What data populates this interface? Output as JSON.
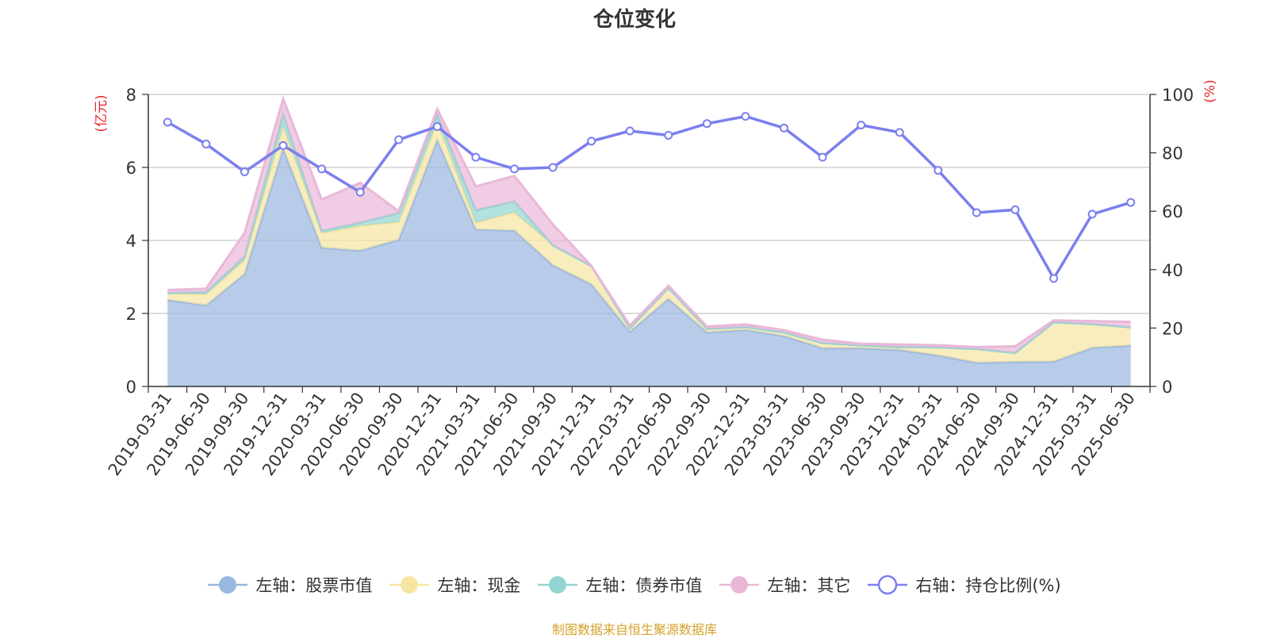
{
  "chart_data": {
    "type": "area",
    "title": "仓位变化",
    "left_unit": "(亿元)",
    "right_unit": "(%)",
    "left_ylim": [
      0,
      8
    ],
    "left_yticks": [
      0,
      2,
      4,
      6,
      8
    ],
    "right_ylim": [
      0,
      100
    ],
    "right_yticks": [
      0,
      20,
      40,
      60,
      80,
      100
    ],
    "grid": true,
    "legend_position": "bottom",
    "categories": [
      "2019-03-31",
      "2019-06-30",
      "2019-09-30",
      "2019-12-31",
      "2020-03-31",
      "2020-06-30",
      "2020-09-30",
      "2020-12-31",
      "2021-03-31",
      "2021-06-30",
      "2021-09-30",
      "2021-12-31",
      "2022-03-31",
      "2022-06-30",
      "2022-09-30",
      "2022-12-31",
      "2023-03-31",
      "2023-06-30",
      "2023-09-30",
      "2023-12-31",
      "2024-03-31",
      "2024-06-30",
      "2024-09-30",
      "2024-12-31",
      "2025-03-31",
      "2025-06-30"
    ],
    "series": [
      {
        "name": "左轴：股票市值",
        "axis": "left",
        "color": "#9ab7e0",
        "values": [
          2.37,
          2.22,
          3.08,
          6.51,
          3.8,
          3.72,
          4.02,
          6.75,
          4.3,
          4.27,
          3.32,
          2.8,
          1.5,
          2.4,
          1.48,
          1.55,
          1.38,
          1.05,
          1.05,
          1.0,
          0.85,
          0.65,
          0.67,
          0.68,
          1.06,
          1.12
        ]
      },
      {
        "name": "左轴：现金",
        "axis": "left",
        "color": "#f7e6a2",
        "values": [
          0.18,
          0.3,
          0.38,
          0.6,
          0.4,
          0.68,
          0.48,
          0.48,
          0.18,
          0.5,
          0.55,
          0.5,
          0.1,
          0.3,
          0.1,
          0.08,
          0.1,
          0.14,
          0.08,
          0.08,
          0.22,
          0.38,
          0.25,
          1.08,
          0.65,
          0.5
        ]
      },
      {
        "name": "左轴：债券市值",
        "axis": "left",
        "color": "#93d4d3",
        "values": [
          0.01,
          0.06,
          0.1,
          0.35,
          0.06,
          0.09,
          0.25,
          0.22,
          0.35,
          0.3,
          0.0,
          0.0,
          0.0,
          0.0,
          0.0,
          0.0,
          0.0,
          0.0,
          0.0,
          0.0,
          0.0,
          0.0,
          0.0,
          0.0,
          0.0,
          0.0
        ]
      },
      {
        "name": "左轴：其它",
        "axis": "left",
        "color": "#e9b8d8",
        "values": [
          0.08,
          0.1,
          0.65,
          0.42,
          0.86,
          1.09,
          0.05,
          0.15,
          0.65,
          0.7,
          0.57,
          0.0,
          0.07,
          0.06,
          0.06,
          0.07,
          0.06,
          0.09,
          0.04,
          0.07,
          0.06,
          0.05,
          0.18,
          0.05,
          0.08,
          0.15
        ]
      },
      {
        "name": "右轴：持仓比例(%)",
        "axis": "right",
        "color": "#7b7fef",
        "values": [
          90.5,
          83.0,
          73.5,
          82.5,
          74.5,
          66.5,
          84.5,
          89.0,
          78.5,
          74.5,
          75.0,
          84.0,
          87.5,
          86.0,
          90.0,
          92.5,
          88.5,
          78.5,
          89.5,
          87.0,
          74.0,
          59.5,
          60.5,
          37.0,
          59.0,
          63.0
        ]
      }
    ]
  },
  "source_text": "制图数据来自恒生聚源数据库",
  "source_color": "#d4a12a",
  "unit_color": "#e8262b"
}
